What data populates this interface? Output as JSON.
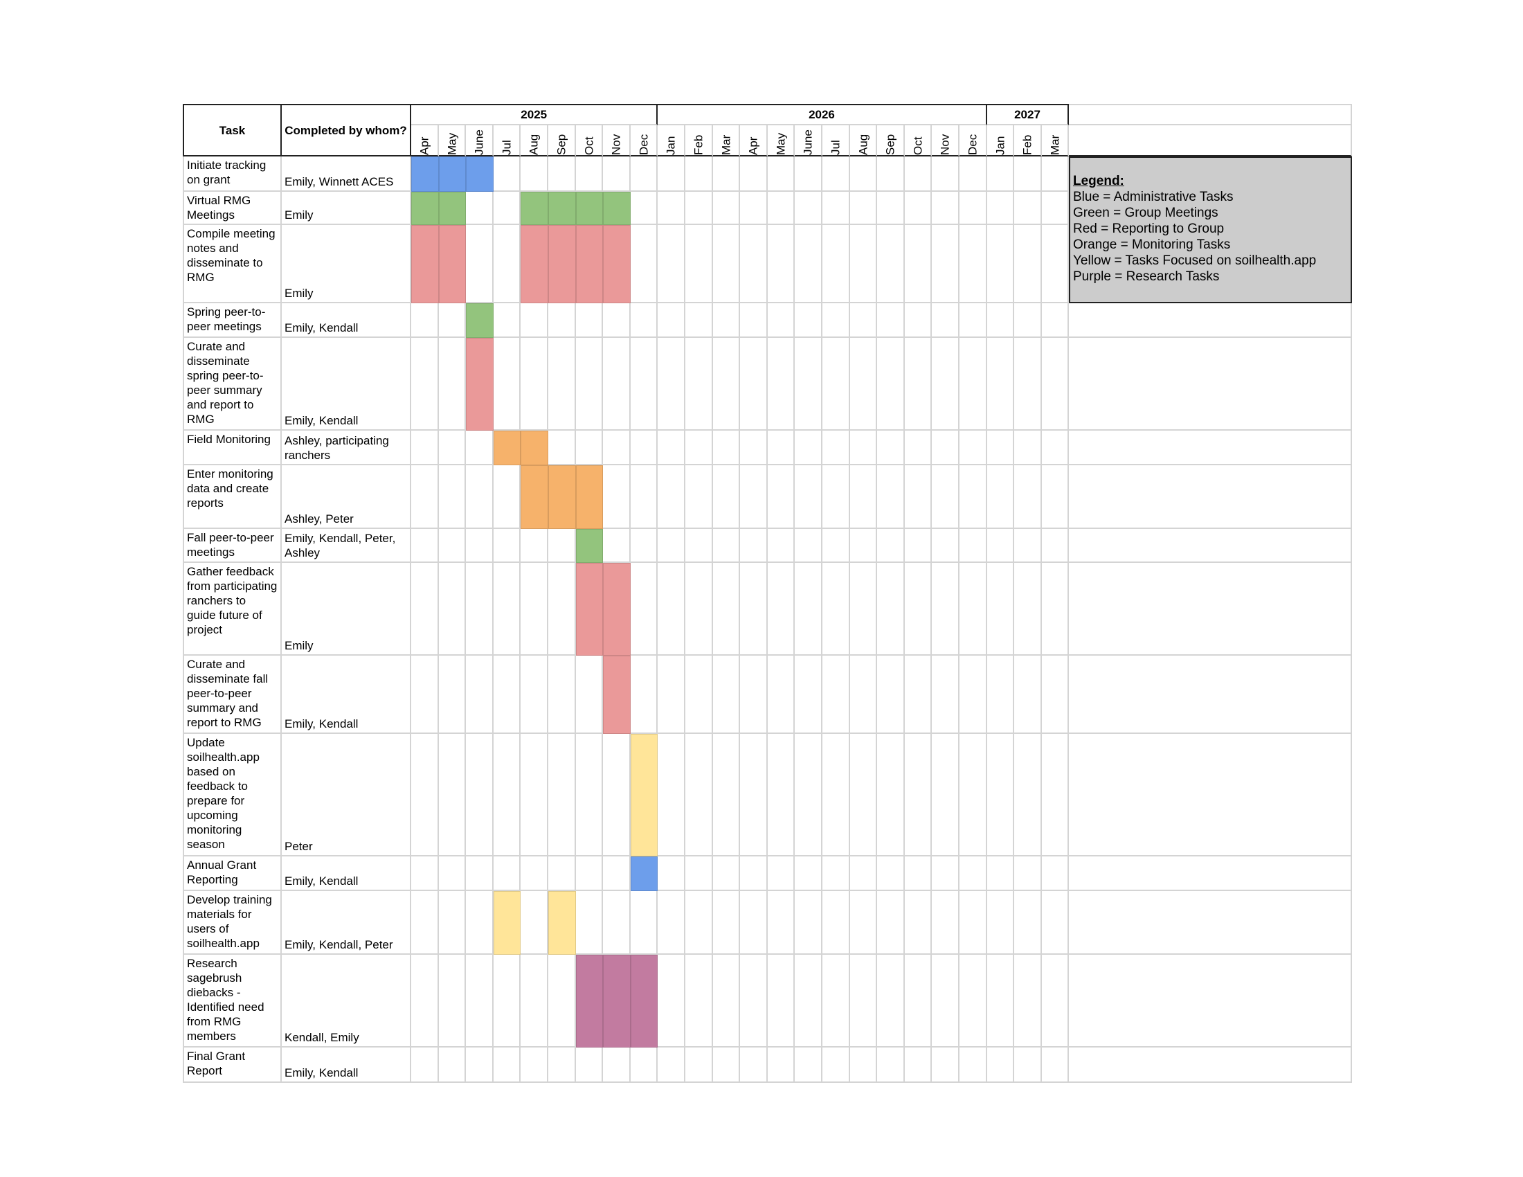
{
  "headers": {
    "task": "Task",
    "who": "Completed by whom?"
  },
  "years": [
    {
      "label": "2025",
      "months": 9
    },
    {
      "label": "2026",
      "months": 12
    },
    {
      "label": "2027",
      "months": 3
    }
  ],
  "months": [
    "Apr",
    "May",
    "June",
    "Jul",
    "Aug",
    "Sep",
    "Oct",
    "Nov",
    "Dec",
    "Jan",
    "Feb",
    "Mar",
    "Apr",
    "May",
    "June",
    "Jul",
    "Aug",
    "Sep",
    "Oct",
    "Nov",
    "Dec",
    "Jan",
    "Feb",
    "Mar"
  ],
  "colors": {
    "blue": "#6d9eeb",
    "green": "#93c47d",
    "red": "#ea9999",
    "orange": "#f6b26b",
    "yellow": "#ffe599",
    "purple": "#c27ba0"
  },
  "rows": [
    {
      "task": "Initiate tracking on grant",
      "who": "Emily, Winnett ACES",
      "color": "blue",
      "months": [
        0,
        1,
        2
      ]
    },
    {
      "task": "Virtual RMG Meetings",
      "who": "Emily",
      "color": "green",
      "months": [
        0,
        1,
        4,
        5,
        6,
        7
      ]
    },
    {
      "task": "Compile meeting notes and disseminate to RMG",
      "who": "Emily",
      "color": "red",
      "months": [
        0,
        1,
        4,
        5,
        6,
        7
      ]
    },
    {
      "task": "Spring peer-to-peer meetings",
      "who": "Emily, Kendall",
      "color": "green",
      "months": [
        2
      ]
    },
    {
      "task": "Curate and disseminate spring peer-to-peer summary and report to RMG",
      "who": "Emily, Kendall",
      "color": "red",
      "months": [
        2
      ]
    },
    {
      "task": "Field Monitoring",
      "who": "Ashley, participating ranchers",
      "color": "orange",
      "months": [
        3,
        4
      ]
    },
    {
      "task": "Enter monitoring data and create reports",
      "who": "Ashley, Peter",
      "color": "orange",
      "months": [
        4,
        5,
        6
      ]
    },
    {
      "task": "Fall peer-to-peer meetings",
      "who": "Emily, Kendall, Peter, Ashley",
      "color": "green",
      "months": [
        6
      ]
    },
    {
      "task": "Gather feedback from participating ranchers to guide future of project",
      "who": "Emily",
      "color": "red",
      "months": [
        6,
        7
      ]
    },
    {
      "task": "Curate and disseminate fall peer-to-peer summary and report to RMG",
      "who": "Emily, Kendall",
      "color": "red",
      "months": [
        7
      ]
    },
    {
      "task": "Update soilhealth.app based on feedback to prepare for upcoming monitoring season",
      "who": "Peter",
      "color": "yellow",
      "months": [
        8
      ]
    },
    {
      "task": "Annual Grant Reporting",
      "who": "Emily, Kendall",
      "color": "blue",
      "months": [
        8
      ]
    },
    {
      "task": "Develop training materials for users of soilhealth.app",
      "who": "Emily, Kendall, Peter",
      "color": "yellow",
      "months": [
        3,
        5
      ]
    },
    {
      "task": "Research sagebrush diebacks - Identified need from RMG members",
      "who": "Kendall, Emily",
      "color": "purple",
      "months": [
        6,
        7,
        8
      ]
    },
    {
      "task": "Final Grant Report",
      "who": "Emily, Kendall",
      "color": "blue",
      "months": []
    }
  ],
  "legend": {
    "title": "Legend:",
    "items": [
      "Blue = Administrative Tasks",
      "Green = Group Meetings",
      "Red = Reporting to Group",
      "Orange = Monitoring Tasks",
      "Yellow = Tasks Focused on soilhealth.app",
      "Purple = Research Tasks"
    ]
  }
}
